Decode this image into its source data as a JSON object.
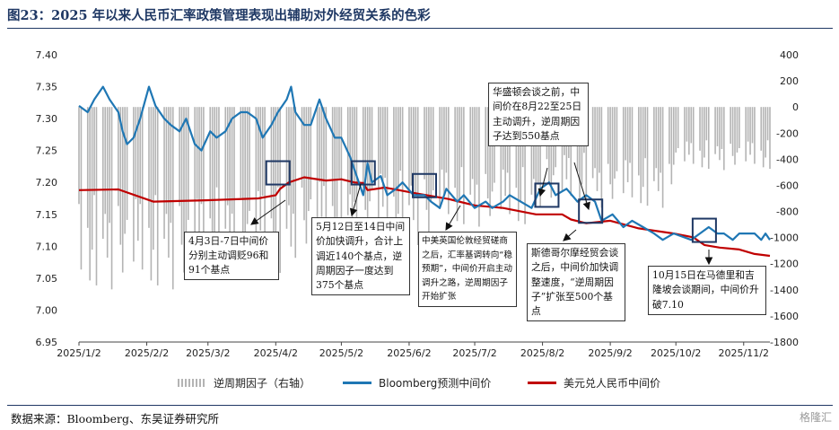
{
  "title": "图23：2025 年以来人民币汇率政策管理表现出辅助对外经贸关系的色彩",
  "source": "数据来源：Bloomberg、东吴证券研究所",
  "watermark": "格隆汇",
  "colors": {
    "bloomberg": "#1f77b4",
    "usdcny": "#c00000",
    "bars": "#b4b4b4",
    "box": "#1f3864",
    "title": "#1f3864"
  },
  "legend": {
    "bars": "逆周期因子（右轴）",
    "bloomberg": "Bloomberg预测中间价",
    "usdcny": "美元兑人民币中间价"
  },
  "annotations": [
    {
      "id": "a1",
      "text": "4月3日-7日中间价分别主动调贬96和91个基点"
    },
    {
      "id": "a2",
      "text": "5月12日至14日中间价加快调升，合计上调近140个基点，逆周期因子一度达到375个基点"
    },
    {
      "id": "a3",
      "text": "中美英国伦敦经贸磋商之后，汇率基调转向“稳预期”，中间价开启主动调升之路，逆周期因子开始扩张"
    },
    {
      "id": "a4",
      "text": "华盛顿会谈之前，中间价在8月22至25日主动调升，逆周期因子达到550基点"
    },
    {
      "id": "a5",
      "text": "斯德哥尔摩经贸会谈之后，中间价加快调整速度，“逆周期因子”扩张至500个基点"
    },
    {
      "id": "a6",
      "text": "10月15日在马德里和吉隆坡会谈期间，中间价升破7.10"
    }
  ],
  "chart_data": {
    "type": "line",
    "x_range": [
      "2025-01-02",
      "2025-11-14"
    ],
    "x_ticks": [
      "2025/1/2",
      "2025/2/2",
      "2025/3/2",
      "2025/4/2",
      "2025/5/2",
      "2025/6/2",
      "2025/7/2",
      "2025/8/2",
      "2025/9/2",
      "2025/10/2",
      "2025/11/2"
    ],
    "y_left": {
      "range": [
        6.95,
        7.4
      ],
      "ticks": [
        "7.40",
        "7.35",
        "7.30",
        "7.25",
        "7.20",
        "7.15",
        "7.10",
        "7.05",
        "7.00",
        "6.95"
      ]
    },
    "y_right": {
      "range": [
        -1800,
        400
      ],
      "ticks": [
        "400",
        "200",
        "0",
        "-200",
        "-400",
        "-600",
        "-800",
        "-1000",
        "-1200",
        "-1400",
        "-1600",
        "-1800"
      ]
    },
    "series": [
      {
        "name": "Bloomberg预测中间价",
        "axis": "left",
        "points": [
          [
            "2025-01-02",
            7.32
          ],
          [
            "2025-01-06",
            7.31
          ],
          [
            "2025-01-09",
            7.33
          ],
          [
            "2025-01-13",
            7.35
          ],
          [
            "2025-01-16",
            7.33
          ],
          [
            "2025-01-20",
            7.31
          ],
          [
            "2025-01-22",
            7.28
          ],
          [
            "2025-01-24",
            7.26
          ],
          [
            "2025-01-27",
            7.27
          ],
          [
            "2025-01-30",
            7.3
          ],
          [
            "2025-02-03",
            7.35
          ],
          [
            "2025-02-06",
            7.32
          ],
          [
            "2025-02-10",
            7.3
          ],
          [
            "2025-02-13",
            7.29
          ],
          [
            "2025-02-17",
            7.28
          ],
          [
            "2025-02-20",
            7.3
          ],
          [
            "2025-02-24",
            7.26
          ],
          [
            "2025-02-27",
            7.25
          ],
          [
            "2025-03-03",
            7.28
          ],
          [
            "2025-03-06",
            7.27
          ],
          [
            "2025-03-10",
            7.28
          ],
          [
            "2025-03-13",
            7.3
          ],
          [
            "2025-03-17",
            7.31
          ],
          [
            "2025-03-20",
            7.31
          ],
          [
            "2025-03-24",
            7.3
          ],
          [
            "2025-03-27",
            7.27
          ],
          [
            "2025-03-31",
            7.29
          ],
          [
            "2025-04-03",
            7.31
          ],
          [
            "2025-04-07",
            7.33
          ],
          [
            "2025-04-09",
            7.35
          ],
          [
            "2025-04-11",
            7.31
          ],
          [
            "2025-04-15",
            7.29
          ],
          [
            "2025-04-18",
            7.29
          ],
          [
            "2025-04-22",
            7.33
          ],
          [
            "2025-04-25",
            7.3
          ],
          [
            "2025-04-29",
            7.27
          ],
          [
            "2025-05-02",
            7.27
          ],
          [
            "2025-05-06",
            7.24
          ],
          [
            "2025-05-08",
            7.22
          ],
          [
            "2025-05-12",
            7.18
          ],
          [
            "2025-05-14",
            7.23
          ],
          [
            "2025-05-16",
            7.2
          ],
          [
            "2025-05-20",
            7.21
          ],
          [
            "2025-05-23",
            7.18
          ],
          [
            "2025-05-27",
            7.19
          ],
          [
            "2025-05-30",
            7.2
          ],
          [
            "2025-06-04",
            7.18
          ],
          [
            "2025-06-09",
            7.18
          ],
          [
            "2025-06-12",
            7.17
          ],
          [
            "2025-06-16",
            7.16
          ],
          [
            "2025-06-19",
            7.19
          ],
          [
            "2025-06-24",
            7.17
          ],
          [
            "2025-06-27",
            7.18
          ],
          [
            "2025-07-02",
            7.16
          ],
          [
            "2025-07-07",
            7.17
          ],
          [
            "2025-07-10",
            7.16
          ],
          [
            "2025-07-15",
            7.17
          ],
          [
            "2025-07-18",
            7.18
          ],
          [
            "2025-07-23",
            7.17
          ],
          [
            "2025-07-28",
            7.16
          ],
          [
            "2025-08-01",
            7.19
          ],
          [
            "2025-08-05",
            7.2
          ],
          [
            "2025-08-08",
            7.18
          ],
          [
            "2025-08-13",
            7.19
          ],
          [
            "2025-08-18",
            7.17
          ],
          [
            "2025-08-22",
            7.18
          ],
          [
            "2025-08-26",
            7.17
          ],
          [
            "2025-08-29",
            7.14
          ],
          [
            "2025-09-03",
            7.15
          ],
          [
            "2025-09-08",
            7.13
          ],
          [
            "2025-09-12",
            7.14
          ],
          [
            "2025-09-17",
            7.13
          ],
          [
            "2025-09-22",
            7.12
          ],
          [
            "2025-09-26",
            7.11
          ],
          [
            "2025-10-01",
            7.12
          ],
          [
            "2025-10-09",
            7.11
          ],
          [
            "2025-10-13",
            7.12
          ],
          [
            "2025-10-17",
            7.13
          ],
          [
            "2025-10-21",
            7.12
          ],
          [
            "2025-10-24",
            7.12
          ],
          [
            "2025-10-28",
            7.11
          ],
          [
            "2025-10-31",
            7.12
          ],
          [
            "2025-11-04",
            7.12
          ],
          [
            "2025-11-07",
            7.12
          ],
          [
            "2025-11-10",
            7.11
          ],
          [
            "2025-11-12",
            7.12
          ],
          [
            "2025-11-14",
            7.11
          ]
        ]
      },
      {
        "name": "美元兑人民币中间价",
        "axis": "left",
        "points": [
          [
            "2025-01-02",
            7.188
          ],
          [
            "2025-01-20",
            7.189
          ],
          [
            "2025-02-05",
            7.17
          ],
          [
            "2025-03-01",
            7.172
          ],
          [
            "2025-03-25",
            7.175
          ],
          [
            "2025-04-02",
            7.18
          ],
          [
            "2025-04-04",
            7.19
          ],
          [
            "2025-04-08",
            7.2
          ],
          [
            "2025-04-15",
            7.208
          ],
          [
            "2025-04-25",
            7.203
          ],
          [
            "2025-05-02",
            7.205
          ],
          [
            "2025-05-08",
            7.2
          ],
          [
            "2025-05-12",
            7.199
          ],
          [
            "2025-05-14",
            7.188
          ],
          [
            "2025-05-22",
            7.192
          ],
          [
            "2025-06-05",
            7.183
          ],
          [
            "2025-06-20",
            7.174
          ],
          [
            "2025-07-02",
            7.164
          ],
          [
            "2025-07-15",
            7.16
          ],
          [
            "2025-07-30",
            7.15
          ],
          [
            "2025-08-11",
            7.15
          ],
          [
            "2025-08-15",
            7.142
          ],
          [
            "2025-08-22",
            7.136
          ],
          [
            "2025-09-02",
            7.14
          ],
          [
            "2025-09-15",
            7.128
          ],
          [
            "2025-10-01",
            7.12
          ],
          [
            "2025-10-10",
            7.114
          ],
          [
            "2025-10-15",
            7.102
          ],
          [
            "2025-10-22",
            7.098
          ],
          [
            "2025-10-31",
            7.095
          ],
          [
            "2025-11-07",
            7.088
          ],
          [
            "2025-11-14",
            7.085
          ]
        ]
      },
      {
        "name": "逆周期因子（右轴）",
        "axis": "right",
        "type": "bar",
        "segments": [
          {
            "from": "2025-01-02",
            "to": "2025-02-28",
            "low": -1450,
            "high": -500
          },
          {
            "from": "2025-03-01",
            "to": "2025-04-10",
            "low": -1350,
            "high": -450
          },
          {
            "from": "2025-04-11",
            "to": "2025-05-12",
            "low": -1200,
            "high": -400
          },
          {
            "from": "2025-05-13",
            "to": "2025-06-15",
            "low": -1100,
            "high": -350
          },
          {
            "from": "2025-06-16",
            "to": "2025-07-31",
            "low": -950,
            "high": -350
          },
          {
            "from": "2025-08-01",
            "to": "2025-08-25",
            "low": -800,
            "high": -250
          },
          {
            "from": "2025-08-26",
            "to": "2025-09-30",
            "low": -800,
            "high": -300
          },
          {
            "from": "2025-10-01",
            "to": "2025-11-14",
            "low": -500,
            "high": -200
          }
        ],
        "sample_values": [
          -520,
          -1180,
          -760,
          -1290,
          -980,
          -430,
          -1340,
          -870,
          -620,
          -1060,
          -710,
          -1380,
          -540,
          -930,
          -1210,
          -820,
          -680,
          -1100,
          -470,
          -890
        ]
      }
    ],
    "box_markers": [
      "2025-04-03",
      "2025-05-12",
      "2025-06-09",
      "2025-08-04",
      "2025-08-24",
      "2025-10-15"
    ]
  }
}
